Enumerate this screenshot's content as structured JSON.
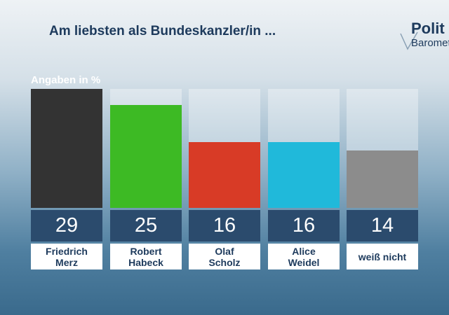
{
  "chart_data": {
    "type": "bar",
    "title": "Am liebsten als Bundeskanzler/in ...",
    "subtitle": "Angaben in %",
    "logo": [
      "Polit",
      "Barometer"
    ],
    "categories": [
      "Friedrich\nMerz",
      "Robert\nHabeck",
      "Olaf\nScholz",
      "Alice\nWeidel",
      "weiß nicht"
    ],
    "values": [
      29,
      25,
      16,
      16,
      14
    ],
    "colors": [
      "#333333",
      "#3dba24",
      "#d83b26",
      "#20b9da",
      "#8c8c8c"
    ],
    "ylim": [
      0,
      29
    ]
  }
}
